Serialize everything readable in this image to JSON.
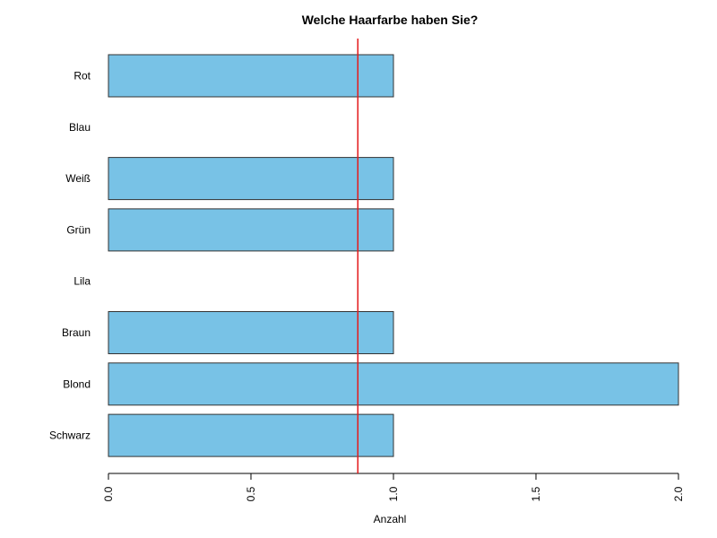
{
  "chart_data": {
    "type": "bar",
    "orientation": "horizontal",
    "title": "Welche Haarfarbe haben Sie?",
    "xlabel": "Anzahl",
    "ylabel": "",
    "categories": [
      "Rot",
      "Blau",
      "Weiß",
      "Grün",
      "Lila",
      "Braun",
      "Blond",
      "Schwarz"
    ],
    "values": [
      1,
      0,
      1,
      1,
      0,
      1,
      2,
      1
    ],
    "xlim": [
      0,
      2
    ],
    "xticks": [
      "0.0",
      "0.5",
      "1.0",
      "1.5",
      "2.0"
    ],
    "reference_line": {
      "value": 0.875,
      "color": "#e41a1c"
    },
    "bar_color": "#78c2e6",
    "grid": false
  }
}
